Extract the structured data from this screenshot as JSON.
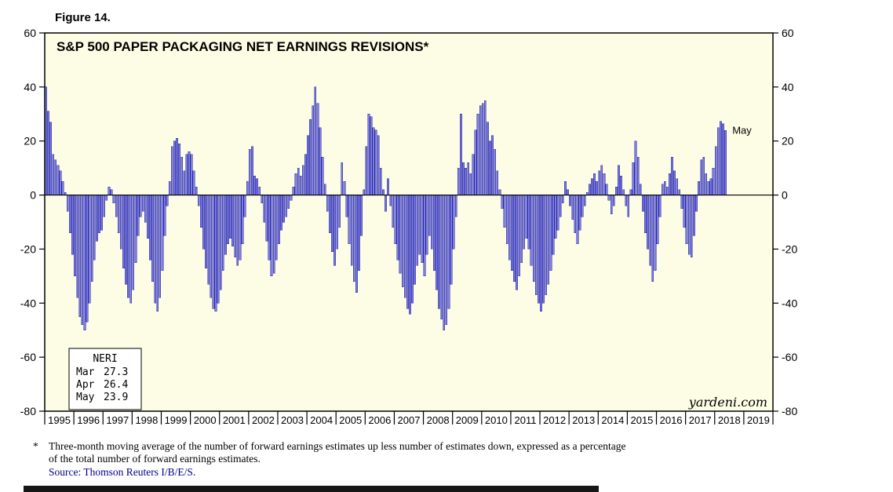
{
  "figure_label": "Figure 14.",
  "chart_title": "S&P 500 PAPER PACKAGING NET EARNINGS REVISIONS*",
  "annotation_may": "May",
  "watermark": "yardeni.com",
  "legend_box": {
    "title": "NERI",
    "rows": [
      {
        "month": "Mar",
        "value": "27.3"
      },
      {
        "month": "Apr",
        "value": "26.4"
      },
      {
        "month": "May",
        "value": "23.9"
      }
    ]
  },
  "footnote": {
    "star": "*",
    "line1": "Three-month moving average of the number of forward earnings estimates up less number of estimates down, expressed as a percentage",
    "line2": "of the total number of forward earnings estimates.",
    "source": "Source: Thomson Reuters I/B/E/S."
  },
  "colors": {
    "bar_fill": "#7E7EDD",
    "bar_stroke": "#2323A0",
    "plot_bg": "#FDFDE6",
    "source_color": "#00008B"
  },
  "chart_data": {
    "type": "bar",
    "title": "S&P 500 PAPER PACKAGING NET EARNINGS REVISIONS*",
    "frequency": "monthly",
    "x_start": "1995-01",
    "x_end": "2018-05",
    "x_axis_years": [
      1995,
      1996,
      1997,
      1998,
      1999,
      2000,
      2001,
      2002,
      2003,
      2004,
      2005,
      2006,
      2007,
      2008,
      2009,
      2010,
      2011,
      2012,
      2013,
      2014,
      2015,
      2016,
      2017,
      2018,
      2019
    ],
    "ylim": [
      -80,
      60
    ],
    "yticks": [
      60,
      40,
      20,
      0,
      -20,
      -40,
      -60,
      -80
    ],
    "latest_values": {
      "Mar": 27.3,
      "Apr": 26.4,
      "May": 23.9
    },
    "values": [
      40,
      31,
      27,
      15,
      13,
      11,
      9,
      5,
      1,
      -6,
      -14,
      -22,
      -30,
      -38,
      -45,
      -48,
      -50,
      -47,
      -40,
      -32,
      -24,
      -17,
      -14,
      -13,
      -8,
      -2,
      3,
      2,
      -3,
      -8,
      -14,
      -20,
      -27,
      -33,
      -38,
      -40,
      -35,
      -25,
      -15,
      -8,
      -6,
      -10,
      -16,
      -24,
      -32,
      -40,
      -43,
      -38,
      -28,
      -15,
      -4,
      5,
      18,
      20,
      21,
      19,
      14,
      9,
      15,
      16,
      15,
      9,
      3,
      -4,
      -12,
      -20,
      -27,
      -33,
      -38,
      -42,
      -43,
      -40,
      -35,
      -28,
      -22,
      -18,
      -16,
      -19,
      -23,
      -26,
      -24,
      -18,
      -8,
      5,
      17,
      18,
      7,
      6,
      3,
      -3,
      -10,
      -17,
      -24,
      -30,
      -29,
      -24,
      -18,
      -13,
      -10,
      -8,
      -5,
      -2,
      3,
      8,
      10,
      7,
      11,
      15,
      22,
      28,
      33,
      40,
      34,
      25,
      14,
      4,
      -6,
      -14,
      -21,
      -26,
      -20,
      -12,
      12,
      5,
      -8,
      -18,
      -26,
      -32,
      -36,
      -28,
      -15,
      2,
      18,
      30,
      29,
      25,
      24,
      22,
      10,
      2,
      -6,
      6,
      -4,
      -12,
      -18,
      -24,
      -29,
      -34,
      -38,
      -42,
      -44,
      -40,
      -33,
      -26,
      -22,
      -25,
      -30,
      -22,
      -15,
      -20,
      -28,
      -35,
      -42,
      -46,
      -50,
      -48,
      -42,
      -33,
      -20,
      -8,
      10,
      30,
      12,
      10,
      12,
      8,
      15,
      24,
      30,
      33,
      34,
      35,
      27,
      20,
      22,
      17,
      9,
      2,
      -5,
      -12,
      -18,
      -24,
      -28,
      -32,
      -35,
      -30,
      -25,
      -20,
      -16,
      -20,
      -26,
      -32,
      -37,
      -40,
      -43,
      -40,
      -37,
      -33,
      -28,
      -22,
      -16,
      -13,
      -8,
      -3,
      5,
      2,
      -4,
      -9,
      -14,
      -18,
      -13,
      -8,
      -4,
      1,
      4,
      6,
      8,
      5,
      9,
      11,
      8,
      4,
      -2,
      -7,
      -4,
      3,
      11,
      7,
      2,
      -4,
      -8,
      2,
      12,
      20,
      14,
      4,
      -6,
      -14,
      -20,
      -26,
      -32,
      -28,
      -18,
      -8,
      4,
      5,
      3,
      8,
      14,
      9,
      6,
      2,
      -5,
      -12,
      -18,
      -22,
      -23,
      -15,
      -6,
      5,
      13,
      14,
      8,
      5,
      6,
      10,
      18,
      25,
      27.3,
      26.4,
      23.9
    ]
  }
}
